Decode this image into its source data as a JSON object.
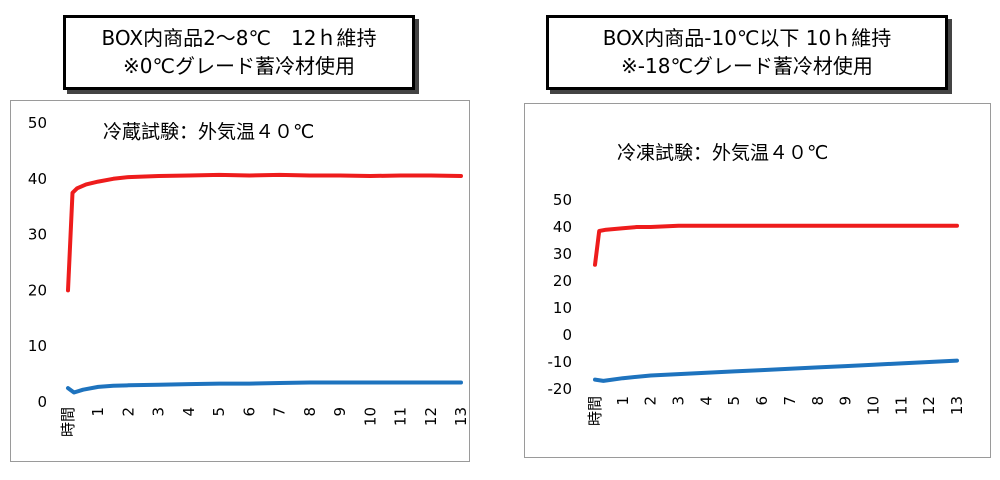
{
  "headers": [
    {
      "line1": "BOX内商品2～8℃　12ｈ維持",
      "line2": "※0℃グレード蓄冷材使用"
    },
    {
      "line1": "BOX内商品-10℃以下 10ｈ維持",
      "line2": "※-18℃グレード蓄冷材使用"
    }
  ],
  "chart_data": [
    {
      "type": "line",
      "title": "冷蔵試験：外気温４０℃",
      "ylim": [
        0,
        50
      ],
      "yticks": [
        0,
        10,
        20,
        30,
        40,
        50
      ],
      "xlim": [
        0,
        13
      ],
      "xticks": [
        "時間",
        "1",
        "2",
        "3",
        "4",
        "5",
        "6",
        "7",
        "8",
        "9",
        "10",
        "11",
        "12",
        "13"
      ],
      "grid": false,
      "series": [
        {
          "color": "#ee1c1c",
          "x": [
            0,
            0.15,
            0.3,
            0.6,
            1,
            1.5,
            2,
            3,
            4,
            5,
            6,
            7,
            8,
            9,
            10,
            11,
            12,
            13
          ],
          "y": [
            20,
            37.5,
            38.3,
            39,
            39.5,
            40,
            40.3,
            40.5,
            40.6,
            40.7,
            40.6,
            40.7,
            40.6,
            40.6,
            40.5,
            40.6,
            40.6,
            40.5
          ]
        },
        {
          "color": "#1e73be",
          "x": [
            0,
            0.2,
            0.5,
            1,
            1.5,
            2,
            3,
            4,
            5,
            6,
            7,
            8,
            9,
            10,
            11,
            12,
            13
          ],
          "y": [
            2.5,
            1.7,
            2.2,
            2.7,
            2.9,
            3.0,
            3.1,
            3.2,
            3.3,
            3.3,
            3.4,
            3.5,
            3.5,
            3.5,
            3.5,
            3.5,
            3.5
          ]
        }
      ]
    },
    {
      "type": "line",
      "title": "冷凍試験：外気温４０℃",
      "ylim": [
        -20,
        50
      ],
      "yticks": [
        -20,
        -10,
        0,
        10,
        20,
        30,
        40,
        50
      ],
      "xlim": [
        0,
        13
      ],
      "xticks": [
        "時間",
        "1",
        "2",
        "3",
        "4",
        "5",
        "6",
        "7",
        "8",
        "9",
        "10",
        "11",
        "12",
        "13"
      ],
      "grid": false,
      "series": [
        {
          "color": "#ee1c1c",
          "x": [
            0,
            0.15,
            0.4,
            1,
            1.5,
            2,
            3,
            4,
            5,
            6,
            7,
            8,
            9,
            10,
            11,
            12,
            13
          ],
          "y": [
            26,
            38.5,
            39,
            39.5,
            40,
            40,
            40.5,
            40.5,
            40.5,
            40.5,
            40.5,
            40.5,
            40.5,
            40.5,
            40.5,
            40.5,
            40.5
          ]
        },
        {
          "color": "#1e73be",
          "x": [
            0,
            0.3,
            1,
            2,
            3,
            4,
            5,
            6,
            7,
            8,
            9,
            10,
            11,
            12,
            13
          ],
          "y": [
            -16.5,
            -17,
            -16,
            -15,
            -14.5,
            -14,
            -13.5,
            -13,
            -12.5,
            -12,
            -11.5,
            -11,
            -10.5,
            -10,
            -9.5
          ]
        }
      ]
    }
  ]
}
